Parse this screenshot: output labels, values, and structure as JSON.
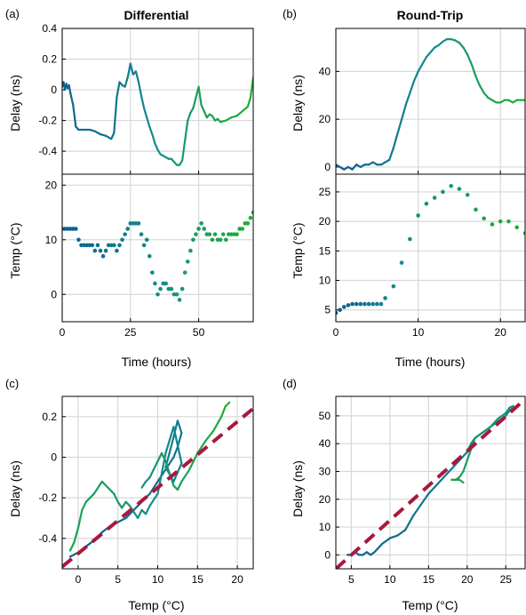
{
  "figure": {
    "panel_letters": [
      "(a)",
      "(b)",
      "(c)",
      "(d)"
    ],
    "colors": {
      "gradient_start": "#0b5c91",
      "gradient_mid": "#148c8c",
      "gradient_end": "#1fb02e",
      "fit_line": "#a8183e",
      "grid": "#d8d8d8"
    }
  },
  "chart_data": [
    {
      "id": "a-delay",
      "type": "line",
      "title": "Differential",
      "ylabel": "Delay (ns)",
      "xlim": [
        0,
        70
      ],
      "ylim": [
        -0.55,
        0.4
      ],
      "yticks": [
        0.4,
        0.2,
        0,
        -0.2,
        -0.4
      ],
      "ytick_labels": [
        "0.4",
        "0.2",
        "0",
        "-0.2",
        "-0.4"
      ],
      "xticks": [
        0,
        25,
        50
      ],
      "grid": true,
      "x": [
        0,
        0.5,
        1,
        1.5,
        2,
        2.5,
        3,
        4,
        5,
        6,
        8,
        10,
        12,
        14,
        16,
        18,
        19,
        20,
        21,
        22,
        23,
        24,
        25,
        26,
        27,
        28,
        29,
        30,
        31,
        32,
        33,
        34,
        35,
        36,
        37,
        38,
        39,
        40,
        41,
        42,
        43,
        44,
        45,
        46,
        47,
        48,
        49,
        50,
        51,
        52,
        53,
        54,
        55,
        56,
        57,
        58,
        60,
        62,
        64,
        66,
        68,
        69,
        70
      ],
      "y": [
        0.02,
        0.05,
        0.0,
        0.04,
        0.01,
        0.03,
        -0.02,
        -0.1,
        -0.24,
        -0.26,
        -0.26,
        -0.26,
        -0.27,
        -0.29,
        -0.3,
        -0.32,
        -0.28,
        -0.05,
        0.05,
        0.03,
        0.02,
        0.08,
        0.17,
        0.1,
        0.12,
        0.05,
        -0.04,
        -0.12,
        -0.18,
        -0.24,
        -0.29,
        -0.35,
        -0.39,
        -0.42,
        -0.43,
        -0.44,
        -0.45,
        -0.45,
        -0.47,
        -0.49,
        -0.49,
        -0.46,
        -0.33,
        -0.2,
        -0.15,
        -0.12,
        -0.05,
        0.02,
        -0.1,
        -0.14,
        -0.18,
        -0.16,
        -0.17,
        -0.2,
        -0.19,
        -0.21,
        -0.2,
        -0.18,
        -0.17,
        -0.14,
        -0.11,
        -0.05,
        0.08
      ]
    },
    {
      "id": "a-temp",
      "type": "scatter",
      "ylabel": "Temp (°C)",
      "xlabel": "Time (hours)",
      "xlim": [
        0,
        70
      ],
      "ylim": [
        -5,
        22
      ],
      "yticks": [
        20,
        10,
        0
      ],
      "xticks": [
        0,
        25,
        50
      ],
      "xtick_labels": [
        "0",
        "25",
        "50"
      ],
      "grid": true,
      "x": [
        0,
        1,
        2,
        3,
        4,
        5,
        6,
        7,
        8,
        9,
        10,
        11,
        12,
        13,
        14,
        15,
        16,
        17,
        18,
        19,
        20,
        21,
        22,
        23,
        24,
        25,
        26,
        27,
        28,
        29,
        30,
        31,
        32,
        33,
        34,
        35,
        36,
        37,
        38,
        39,
        40,
        41,
        42,
        43,
        44,
        45,
        46,
        47,
        48,
        49,
        50,
        51,
        52,
        53,
        54,
        55,
        56,
        57,
        58,
        59,
        60,
        61,
        62,
        63,
        64,
        65,
        66,
        67,
        68,
        69,
        70
      ],
      "y": [
        12,
        12,
        12,
        12,
        12,
        12,
        10,
        9,
        9,
        9,
        9,
        9,
        8,
        9,
        8,
        7,
        8,
        9,
        9,
        9,
        8,
        9,
        10,
        11,
        12,
        13,
        13,
        13,
        13,
        11,
        9,
        10,
        7,
        4,
        2,
        0,
        1,
        2,
        2,
        1,
        1,
        0,
        0,
        -1,
        1,
        4,
        6,
        8,
        10,
        11,
        12,
        13,
        12,
        11,
        11,
        10,
        11,
        10,
        10,
        11,
        10,
        11,
        11,
        11,
        11,
        12,
        12,
        13,
        13,
        14,
        15
      ]
    },
    {
      "id": "b-delay",
      "type": "line",
      "title": "Round-Trip",
      "ylabel": "Delay (ns)",
      "xlim": [
        0,
        23
      ],
      "ylim": [
        -3,
        58
      ],
      "yticks": [
        40,
        20,
        0
      ],
      "xticks": [
        0,
        10,
        20
      ],
      "grid": true,
      "x": [
        0,
        0.5,
        1,
        1.5,
        2,
        2.5,
        3,
        3.5,
        4,
        4.5,
        5,
        5.5,
        6,
        6.5,
        7,
        7.5,
        8,
        8.5,
        9,
        9.5,
        10,
        10.5,
        11,
        11.5,
        12,
        12.5,
        13,
        13.5,
        14,
        14.5,
        15,
        15.5,
        16,
        16.5,
        17,
        17.5,
        18,
        18.5,
        19,
        19.5,
        20,
        20.5,
        21,
        21.5,
        22,
        22.5,
        23
      ],
      "y": [
        1,
        0,
        -1,
        0,
        -1,
        1,
        0,
        1,
        1,
        2,
        1,
        1,
        2,
        3,
        8,
        14,
        20,
        26,
        31,
        36,
        40,
        43,
        46,
        48,
        50,
        51,
        52.5,
        53.5,
        53.5,
        53,
        52,
        50,
        47,
        43,
        38,
        34,
        31,
        29,
        28,
        27,
        27,
        28,
        28,
        27,
        28,
        28,
        28
      ]
    },
    {
      "id": "b-temp",
      "type": "scatter",
      "ylabel": "Temp (°C)",
      "xlabel": "Time (hours)",
      "xlim": [
        0,
        23
      ],
      "ylim": [
        3,
        28
      ],
      "yticks": [
        25,
        20,
        15,
        10,
        5
      ],
      "xticks": [
        0,
        10,
        20
      ],
      "xtick_labels": [
        "0",
        "10",
        "20"
      ],
      "grid": true,
      "x": [
        0,
        0.5,
        1,
        1.5,
        2,
        2.5,
        3,
        3.5,
        4,
        4.5,
        5,
        5.5,
        6,
        7,
        8,
        9,
        10,
        11,
        12,
        13,
        14,
        15,
        16,
        17,
        18,
        19,
        20,
        21,
        22,
        23
      ],
      "y": [
        4.5,
        5,
        5.5,
        5.8,
        6,
        6,
        6,
        6,
        6,
        6,
        6,
        6,
        7,
        9,
        13,
        17,
        21,
        23,
        24,
        25,
        26,
        25.5,
        24.5,
        22,
        20.5,
        19.5,
        20,
        20,
        19,
        18
      ]
    },
    {
      "id": "c",
      "type": "line",
      "xlabel": "Temp (°C)",
      "ylabel": "Delay (ns)",
      "xlim": [
        -2,
        22
      ],
      "ylim": [
        -0.55,
        0.3
      ],
      "xticks": [
        0,
        5,
        10,
        15,
        20
      ],
      "xtick_labels": [
        "0",
        "5",
        "10",
        "15",
        "20"
      ],
      "yticks": [
        0.2,
        0,
        -0.2,
        -0.4
      ],
      "ytick_labels": [
        "0.2",
        "0",
        "-0.2",
        "-0.4"
      ],
      "grid": true,
      "series": [
        {
          "x": [
            -1,
            0,
            1,
            2,
            3,
            4,
            5,
            6,
            7,
            8,
            9,
            10,
            11,
            12,
            12.5,
            13,
            12.5,
            12,
            11,
            12,
            13,
            12.5,
            12,
            11,
            10,
            9,
            8.5,
            8,
            7.5,
            7,
            6.5,
            6,
            5.5,
            5,
            4.5,
            4,
            3,
            2,
            1,
            0.5,
            0,
            -0.5,
            -1
          ],
          "y": [
            -0.49,
            -0.47,
            -0.44,
            -0.41,
            -0.37,
            -0.34,
            -0.32,
            -0.3,
            -0.26,
            -0.22,
            -0.18,
            -0.12,
            -0.06,
            0.0,
            0.05,
            0.12,
            0.18,
            0.1,
            -0.05,
            -0.12,
            -0.03,
            0.06,
            0.15,
            0.02,
            -0.18,
            -0.24,
            -0.28,
            -0.26,
            -0.3,
            -0.27,
            -0.24,
            -0.22,
            -0.25,
            -0.22,
            -0.18,
            -0.16,
            -0.12,
            -0.18,
            -0.22,
            -0.26,
            -0.35,
            -0.42,
            -0.46
          ]
        },
        {
          "x": [
            8,
            8.5,
            9,
            9.5,
            10,
            10.5,
            11,
            11.5,
            12,
            12.5,
            13,
            14,
            15,
            16,
            17,
            18,
            18.5,
            19
          ],
          "y": [
            -0.15,
            -0.12,
            -0.1,
            -0.06,
            -0.02,
            0.02,
            -0.02,
            -0.08,
            -0.14,
            -0.16,
            -0.12,
            -0.06,
            0.02,
            0.08,
            0.13,
            0.2,
            0.25,
            0.27
          ]
        }
      ],
      "fit": {
        "x": [
          -2,
          22
        ],
        "y": [
          -0.54,
          0.24
        ]
      }
    },
    {
      "id": "d",
      "type": "line",
      "xlabel": "Temp (°C)",
      "ylabel": "Delay (ns)",
      "xlim": [
        3,
        27.5
      ],
      "ylim": [
        -5,
        57
      ],
      "xticks": [
        5,
        10,
        15,
        20,
        25
      ],
      "xtick_labels": [
        "5",
        "10",
        "15",
        "20",
        "25"
      ],
      "yticks": [
        50,
        40,
        30,
        20,
        10,
        0
      ],
      "ytick_labels": [
        "50",
        "40",
        "30",
        "20",
        "10",
        "0"
      ],
      "grid": true,
      "series": [
        {
          "x": [
            4.5,
            5,
            5.5,
            6,
            6.5,
            7,
            7.5,
            8,
            9,
            10,
            11,
            12,
            13,
            14,
            15,
            16,
            17,
            18,
            19,
            20,
            20.5,
            21,
            21.5,
            22,
            23,
            24,
            25,
            25.5,
            26,
            26,
            25.5,
            25,
            24,
            23,
            22,
            21,
            20.5,
            20,
            19.5,
            19,
            18.5,
            18,
            19,
            19.5
          ],
          "y": [
            0,
            0,
            1,
            0,
            0,
            1,
            0,
            1,
            4,
            6,
            7,
            9,
            14,
            18,
            22,
            25,
            28,
            31,
            34,
            37,
            40,
            42,
            43,
            44,
            46,
            48,
            50,
            52,
            53,
            53.5,
            53,
            51,
            49,
            46,
            44,
            42,
            38,
            34,
            30,
            28,
            27,
            27,
            27,
            26
          ]
        }
      ],
      "fit": {
        "x": [
          3,
          27.5
        ],
        "y": [
          -5,
          56
        ]
      }
    }
  ]
}
